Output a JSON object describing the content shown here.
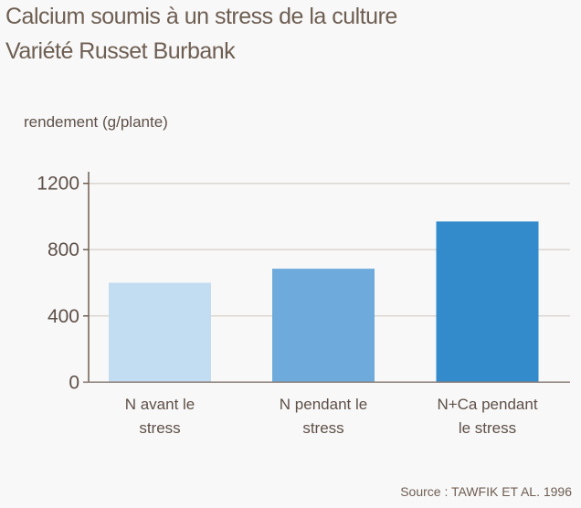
{
  "chart_data": {
    "type": "bar",
    "title": "Calcium soumis à un stress de la culture",
    "subtitle": "Variété Russet Burbank",
    "ylabel": "rendement (g/plante)",
    "xlabel": "",
    "categories": [
      [
        "N avant le",
        "stress"
      ],
      [
        "N pendant le",
        "stress"
      ],
      [
        "N+Ca pendant",
        "le stress"
      ]
    ],
    "values": [
      600,
      685,
      970
    ],
    "colors": [
      "#c2dcf2",
      "#6eabdc",
      "#338bcc"
    ],
    "ylim": [
      0,
      1200
    ],
    "yticks": [
      0,
      400,
      800,
      1200
    ],
    "grid": true,
    "source": "Source : TAWFIK ET AL. 1996"
  }
}
